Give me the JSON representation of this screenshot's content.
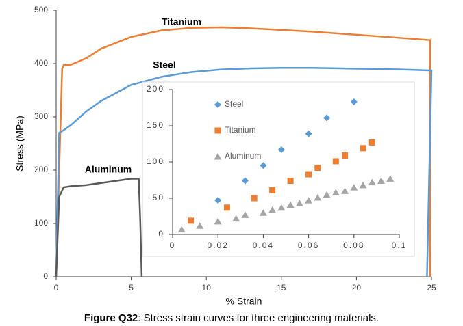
{
  "chart_data": [
    {
      "type": "line",
      "xlabel": "% Strain",
      "ylabel": "Stress (MPa)",
      "xlim": [
        0,
        25
      ],
      "xticks": [
        0,
        5,
        10,
        15,
        20,
        25
      ],
      "ylim": [
        0,
        500
      ],
      "yticks": [
        0,
        100,
        200,
        300,
        400,
        500
      ],
      "grid": false,
      "series": [
        {
          "name": "Titanium",
          "color": "#ED7D31",
          "x": [
            0,
            0.2,
            0.4,
            0.5,
            1,
            2,
            3,
            5,
            7,
            9,
            11,
            13,
            15,
            17,
            19,
            21,
            23,
            24.9,
            24.9
          ],
          "values": [
            0,
            200,
            390,
            397,
            398,
            410,
            428,
            450,
            462,
            467,
            468,
            466,
            463,
            460,
            456,
            452,
            448,
            444,
            0
          ]
        },
        {
          "name": "Steel",
          "color": "#5B9BD5",
          "x": [
            0,
            0.2,
            0.5,
            1,
            2,
            3,
            5,
            7,
            9,
            11,
            13,
            15,
            17,
            19,
            21,
            23,
            25,
            24.7
          ],
          "values": [
            0,
            270,
            275,
            285,
            310,
            330,
            360,
            375,
            384,
            389,
            391,
            392,
            392,
            391,
            390,
            389,
            387,
            0
          ]
        },
        {
          "name": "Aluminum",
          "color": "#595959",
          "x": [
            0,
            0.2,
            0.5,
            1,
            2,
            3,
            4,
            5,
            5.5,
            5.6,
            5.7
          ],
          "values": [
            0,
            150,
            168,
            170,
            172,
            176,
            180,
            184,
            184,
            105,
            0
          ]
        }
      ]
    },
    {
      "type": "scatter",
      "xlim": [
        0,
        0.1
      ],
      "xticks": [
        0,
        0.02,
        0.04,
        0.06,
        0.08,
        0.1
      ],
      "ylim": [
        0,
        200
      ],
      "yticks": [
        0,
        50,
        100,
        150,
        200
      ],
      "grid": false,
      "series": [
        {
          "name": "Steel",
          "color": "#5B9BD5",
          "marker": "diamond",
          "x": [
            0.02,
            0.032,
            0.04,
            0.048,
            0.06,
            0.068,
            0.08
          ],
          "values": [
            47,
            74,
            95,
            117,
            139,
            161,
            183
          ]
        },
        {
          "name": "Titanium",
          "color": "#ED7D31",
          "marker": "square",
          "x": [
            0.008,
            0.024,
            0.036,
            0.044,
            0.052,
            0.06,
            0.064,
            0.072,
            0.076,
            0.084,
            0.088
          ],
          "values": [
            19,
            37,
            50,
            61,
            74,
            83,
            92,
            101,
            109,
            119,
            127
          ]
        },
        {
          "name": "Aluminum",
          "color": "#A5A5A5",
          "marker": "triangle",
          "x": [
            0.004,
            0.012,
            0.02,
            0.028,
            0.032,
            0.04,
            0.044,
            0.048,
            0.052,
            0.056,
            0.06,
            0.064,
            0.068,
            0.072,
            0.076,
            0.08,
            0.084,
            0.088,
            0.092,
            0.096
          ],
          "values": [
            7,
            12,
            18,
            22,
            27,
            30,
            34,
            37,
            41,
            43,
            47,
            51,
            55,
            58,
            60,
            65,
            68,
            72,
            74,
            77
          ]
        }
      ]
    }
  ],
  "caption": {
    "label": "Figure Q32",
    "text": ": Stress strain curves for three engineering materials."
  }
}
